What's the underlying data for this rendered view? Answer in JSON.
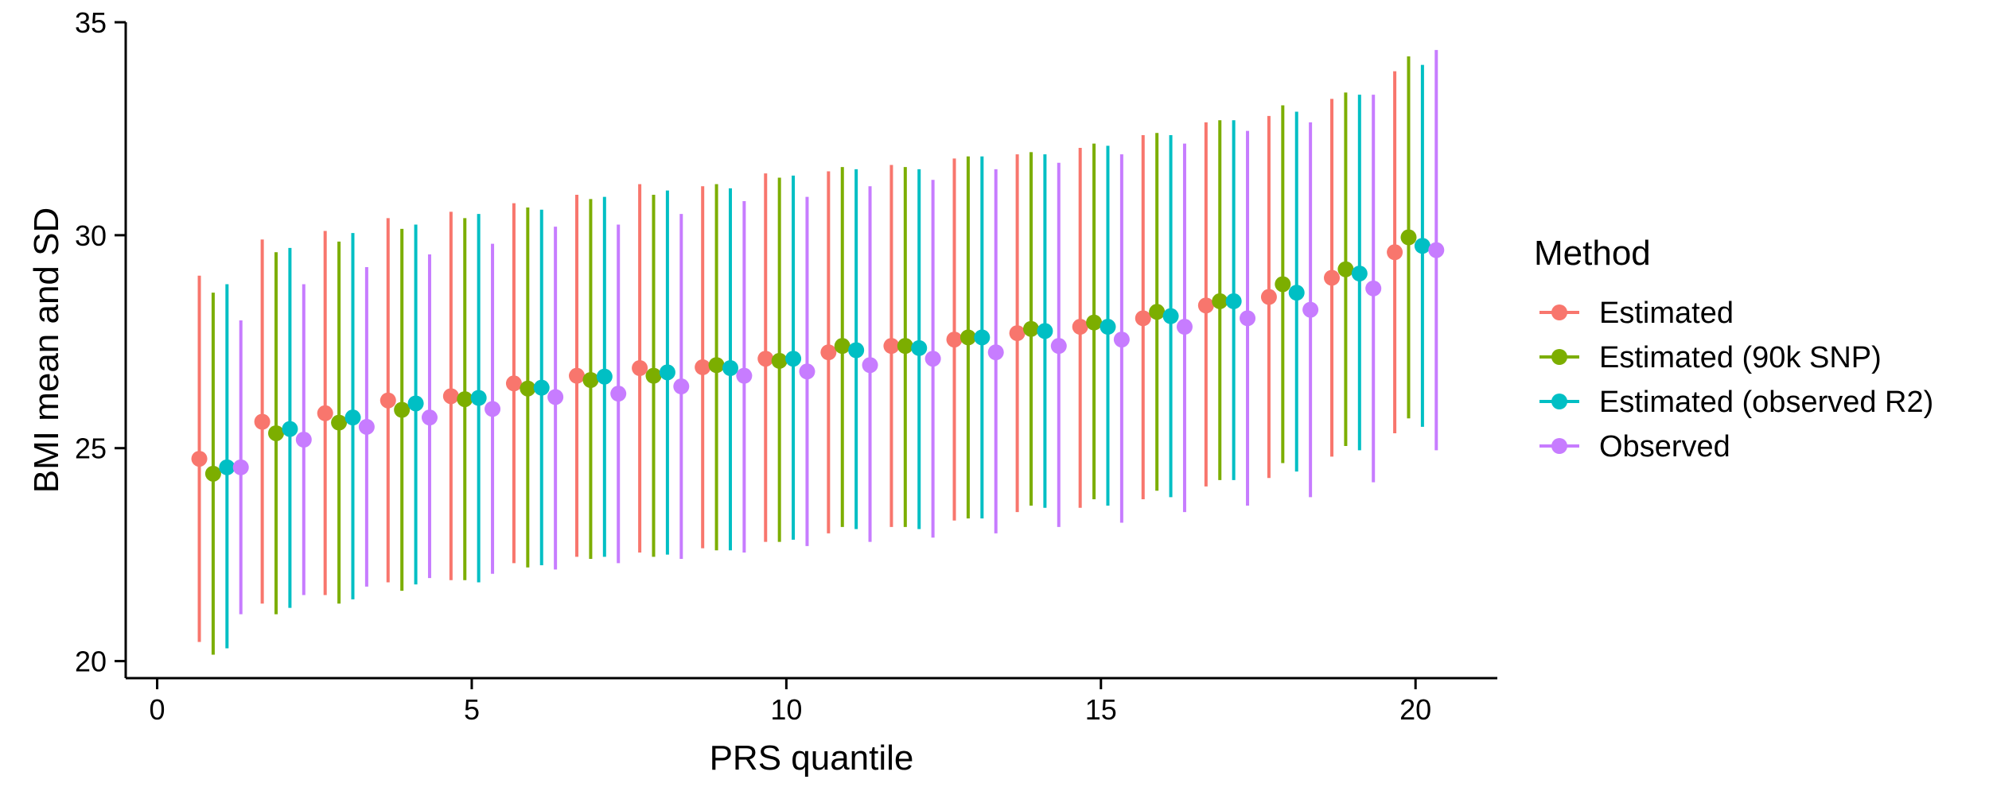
{
  "chart_data": {
    "type": "scatter",
    "title": "",
    "xlabel": "PRS quantile",
    "ylabel": "BMI mean and SD",
    "xlim": [
      -0.5,
      21.3
    ],
    "ylim": [
      19.6,
      35
    ],
    "x_ticks": [
      0,
      5,
      10,
      15,
      20
    ],
    "y_ticks": [
      20,
      25,
      30,
      35
    ],
    "grid": false,
    "legend": {
      "title": "Method",
      "position": "right"
    },
    "x": [
      1,
      2,
      3,
      4,
      5,
      6,
      7,
      8,
      9,
      10,
      11,
      12,
      13,
      14,
      15,
      16,
      17,
      18,
      19,
      20
    ],
    "dodge": [
      -0.33,
      -0.11,
      0.11,
      0.33
    ],
    "series": [
      {
        "name": "Estimated",
        "color": "#F8766D",
        "mean": [
          24.75,
          25.62,
          25.82,
          26.12,
          26.22,
          26.52,
          26.7,
          26.88,
          26.9,
          27.1,
          27.25,
          27.4,
          27.55,
          27.7,
          27.85,
          28.05,
          28.35,
          28.55,
          29.0,
          29.6
        ],
        "lower": [
          20.45,
          21.35,
          21.55,
          21.85,
          21.9,
          22.3,
          22.45,
          22.55,
          22.65,
          22.8,
          23.0,
          23.15,
          23.3,
          23.5,
          23.6,
          23.8,
          24.1,
          24.3,
          24.8,
          25.35
        ],
        "upper": [
          29.05,
          29.9,
          30.1,
          30.4,
          30.55,
          30.75,
          30.95,
          31.2,
          31.15,
          31.45,
          31.5,
          31.65,
          31.8,
          31.9,
          32.05,
          32.35,
          32.65,
          32.8,
          33.2,
          33.85
        ]
      },
      {
        "name": "Estimated (90k SNP)",
        "color": "#7CAE00",
        "mean": [
          24.4,
          25.35,
          25.6,
          25.9,
          26.15,
          26.4,
          26.6,
          26.7,
          26.95,
          27.05,
          27.4,
          27.4,
          27.6,
          27.8,
          27.95,
          28.2,
          28.45,
          28.85,
          29.2,
          29.95
        ],
        "lower": [
          20.15,
          21.1,
          21.35,
          21.65,
          21.9,
          22.2,
          22.4,
          22.45,
          22.6,
          22.8,
          23.15,
          23.15,
          23.35,
          23.65,
          23.8,
          24.0,
          24.25,
          24.65,
          25.05,
          25.7
        ],
        "upper": [
          28.65,
          29.6,
          29.85,
          30.15,
          30.4,
          30.65,
          30.85,
          30.95,
          31.2,
          31.35,
          31.6,
          31.6,
          31.85,
          31.95,
          32.15,
          32.4,
          32.7,
          33.05,
          33.35,
          34.2
        ]
      },
      {
        "name": "Estimated (observed R2)",
        "color": "#00BFC4",
        "mean": [
          24.55,
          25.45,
          25.72,
          26.05,
          26.18,
          26.42,
          26.68,
          26.78,
          26.88,
          27.1,
          27.3,
          27.35,
          27.6,
          27.75,
          27.85,
          28.1,
          28.45,
          28.65,
          29.1,
          29.75
        ],
        "lower": [
          20.3,
          21.25,
          21.45,
          21.8,
          21.85,
          22.25,
          22.45,
          22.5,
          22.6,
          22.85,
          23.1,
          23.1,
          23.35,
          23.6,
          23.65,
          23.85,
          24.25,
          24.45,
          24.95,
          25.5
        ],
        "upper": [
          28.85,
          29.7,
          30.05,
          30.25,
          30.5,
          30.6,
          30.9,
          31.05,
          31.1,
          31.4,
          31.55,
          31.55,
          31.85,
          31.9,
          32.1,
          32.35,
          32.7,
          32.9,
          33.3,
          34.0
        ]
      },
      {
        "name": "Observed",
        "color": "#C77CFF",
        "mean": [
          24.55,
          25.2,
          25.5,
          25.72,
          25.92,
          26.2,
          26.28,
          26.45,
          26.7,
          26.8,
          26.95,
          27.1,
          27.25,
          27.4,
          27.55,
          27.85,
          28.05,
          28.25,
          28.75,
          29.65
        ],
        "lower": [
          21.1,
          21.55,
          21.75,
          21.95,
          22.05,
          22.15,
          22.3,
          22.4,
          22.55,
          22.7,
          22.8,
          22.9,
          23.0,
          23.15,
          23.25,
          23.5,
          23.65,
          23.85,
          24.2,
          24.95
        ],
        "upper": [
          28.0,
          28.85,
          29.25,
          29.55,
          29.8,
          30.2,
          30.25,
          30.5,
          30.8,
          30.9,
          31.15,
          31.3,
          31.55,
          31.7,
          31.9,
          32.15,
          32.45,
          32.65,
          33.3,
          34.35
        ]
      }
    ]
  }
}
